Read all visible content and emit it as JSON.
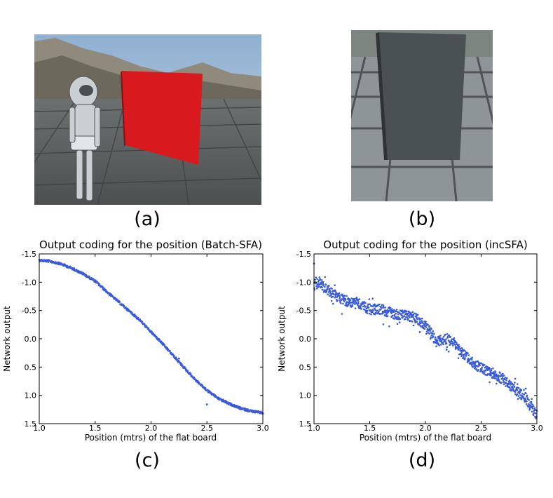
{
  "panels": {
    "a": {
      "caption": "(a)"
    },
    "b": {
      "caption": "(b)"
    },
    "c": {
      "caption": "(c)"
    },
    "d": {
      "caption": "(d)"
    }
  },
  "colors": {
    "points": "#3a5bd9",
    "board_red": "#d81a1f",
    "board_gray": "#555a5c",
    "sky": "#a9c2d8"
  },
  "chart_data": [
    {
      "id": "c",
      "type": "scatter",
      "title": "Output coding for the position (Batch-SFA)",
      "xlabel": "Position (mtrs) of the flat board",
      "ylabel": "Network output",
      "xlim": [
        1.0,
        3.0
      ],
      "ylim": [
        1.5,
        -1.5
      ],
      "xticks": [
        "1.0",
        "1.5",
        "2.0",
        "2.5",
        "3.0"
      ],
      "yticks": [
        "-1.5",
        "-1.0",
        "-0.5",
        "0.0",
        "0.5",
        "1.0",
        "1.5"
      ],
      "ytick_values": [
        -1.5,
        -1.0,
        -0.5,
        0.0,
        0.5,
        1.0,
        1.5
      ],
      "xtick_values": [
        1.0,
        1.5,
        2.0,
        2.5,
        3.0
      ],
      "curve": [
        [
          1.0,
          -1.39
        ],
        [
          1.1,
          -1.37
        ],
        [
          1.2,
          -1.32
        ],
        [
          1.3,
          -1.24
        ],
        [
          1.4,
          -1.14
        ],
        [
          1.5,
          -1.02
        ],
        [
          1.6,
          -0.84
        ],
        [
          1.7,
          -0.67
        ],
        [
          1.8,
          -0.5
        ],
        [
          1.9,
          -0.33
        ],
        [
          2.0,
          -0.12
        ],
        [
          2.1,
          0.08
        ],
        [
          2.2,
          0.3
        ],
        [
          2.3,
          0.52
        ],
        [
          2.4,
          0.73
        ],
        [
          2.5,
          0.91
        ],
        [
          2.6,
          1.05
        ],
        [
          2.7,
          1.15
        ],
        [
          2.8,
          1.23
        ],
        [
          2.9,
          1.28
        ],
        [
          3.0,
          1.31
        ]
      ],
      "noise": 0.02,
      "outliers": [
        [
          2.5,
          1.16
        ],
        [
          2.25,
          0.35
        ]
      ]
    },
    {
      "id": "d",
      "type": "scatter",
      "title": "Output coding for the position (incSFA)",
      "xlabel": "Position (mtrs) of the flat board",
      "ylabel": "Network output",
      "xlim": [
        1.0,
        3.0
      ],
      "ylim": [
        1.5,
        -1.5
      ],
      "xticks": [
        "1.0",
        "1.5",
        "2.0",
        "2.5",
        "3.0"
      ],
      "yticks": [
        "-1.5",
        "-1.0",
        "-0.5",
        "0.0",
        "0.5",
        "1.0",
        "1.5"
      ],
      "ytick_values": [
        -1.5,
        -1.0,
        -0.5,
        0.0,
        0.5,
        1.0,
        1.5
      ],
      "xtick_values": [
        1.0,
        1.5,
        2.0,
        2.5,
        3.0
      ],
      "curve": [
        [
          1.0,
          -0.95
        ],
        [
          1.05,
          -1.0
        ],
        [
          1.1,
          -0.9
        ],
        [
          1.2,
          -0.75
        ],
        [
          1.3,
          -0.65
        ],
        [
          1.4,
          -0.62
        ],
        [
          1.5,
          -0.52
        ],
        [
          1.6,
          -0.52
        ],
        [
          1.7,
          -0.45
        ],
        [
          1.8,
          -0.42
        ],
        [
          1.9,
          -0.38
        ],
        [
          2.0,
          -0.25
        ],
        [
          2.05,
          -0.1
        ],
        [
          2.1,
          0.05
        ],
        [
          2.2,
          0.0
        ],
        [
          2.25,
          0.05
        ],
        [
          2.3,
          0.2
        ],
        [
          2.4,
          0.38
        ],
        [
          2.5,
          0.52
        ],
        [
          2.6,
          0.6
        ],
        [
          2.7,
          0.72
        ],
        [
          2.8,
          0.9
        ],
        [
          2.9,
          1.05
        ],
        [
          2.95,
          1.2
        ],
        [
          3.0,
          1.35
        ]
      ],
      "noise": 0.09,
      "outliers": [
        [
          1.0,
          -1.33
        ],
        [
          1.95,
          -0.12
        ],
        [
          2.9,
          0.88
        ]
      ]
    }
  ]
}
